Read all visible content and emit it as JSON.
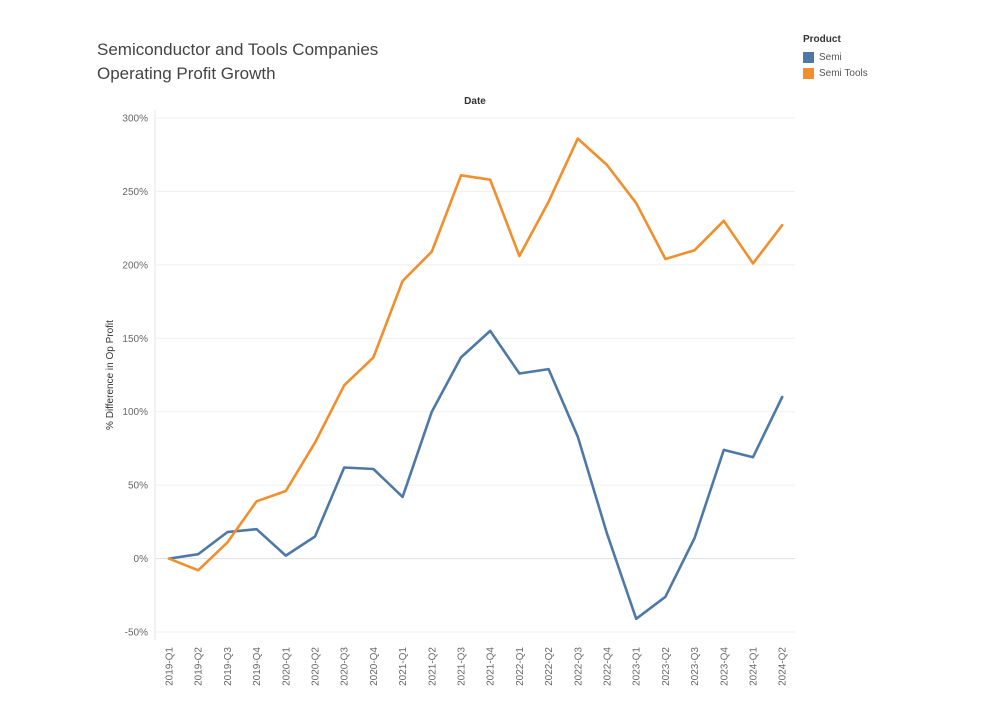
{
  "title": {
    "line1": "Semiconductor and Tools Companies",
    "line2": "Operating Profit Growth"
  },
  "legend": {
    "title": "Product",
    "items": [
      {
        "label": "Semi",
        "color": "#4e79a7"
      },
      {
        "label": "Semi Tools",
        "color": "#f28e2b"
      }
    ]
  },
  "chart_data": {
    "type": "line",
    "title": "Semiconductor and Tools Companies Operating Profit Growth",
    "xlabel": "Date",
    "ylabel": "% Difference in Op Profit",
    "ylim": [
      -50,
      300
    ],
    "yticks": [
      -50,
      0,
      50,
      100,
      150,
      200,
      250,
      300
    ],
    "ytick_labels": [
      "-50%",
      "0%",
      "50%",
      "100%",
      "150%",
      "200%",
      "250%",
      "300%"
    ],
    "grid": true,
    "legend_position": "top-right",
    "categories": [
      "2019-Q1",
      "2019-Q2",
      "2019-Q3",
      "2019-Q4",
      "2020-Q1",
      "2020-Q2",
      "2020-Q3",
      "2020-Q4",
      "2021-Q1",
      "2021-Q2",
      "2021-Q3",
      "2021-Q4",
      "2022-Q1",
      "2022-Q2",
      "2022-Q3",
      "2022-Q4",
      "2023-Q1",
      "2023-Q2",
      "2023-Q3",
      "2023-Q4",
      "2024-Q1",
      "2024-Q2"
    ],
    "series": [
      {
        "name": "Semi",
        "color": "#4e79a7",
        "values": [
          0,
          3,
          18,
          20,
          2,
          15,
          62,
          61,
          42,
          100,
          137,
          155,
          126,
          129,
          83,
          17,
          -41,
          -26,
          14,
          74,
          69,
          110
        ]
      },
      {
        "name": "Semi Tools",
        "color": "#f28e2b",
        "values": [
          0,
          -8,
          11,
          39,
          46,
          79,
          118,
          137,
          189,
          209,
          261,
          258,
          206,
          243,
          286,
          268,
          242,
          204,
          210,
          230,
          201,
          227
        ]
      }
    ]
  }
}
